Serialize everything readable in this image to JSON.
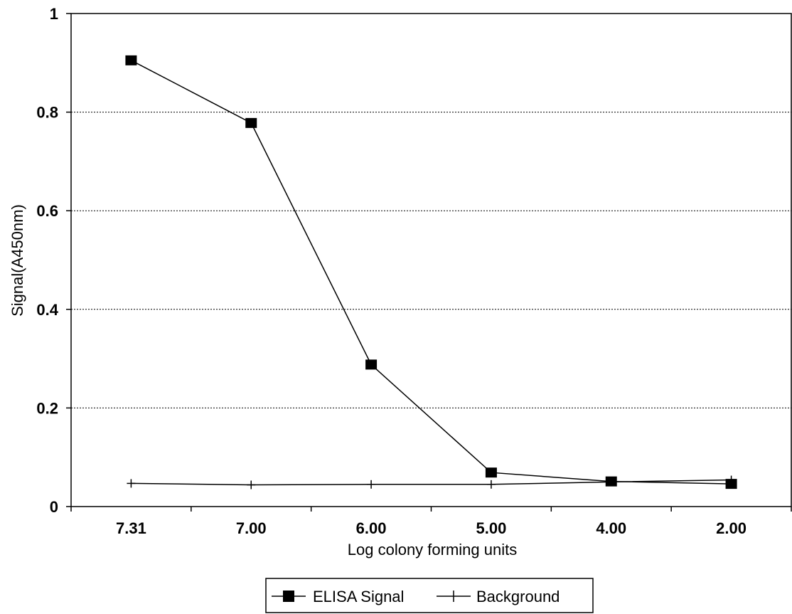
{
  "chart_data": {
    "type": "line",
    "title": "",
    "xlabel": "Log colony forming units",
    "ylabel": "Signal(A450nm)",
    "categories": [
      "7.31",
      "7.00",
      "6.00",
      "5.00",
      "4.00",
      "2.00"
    ],
    "ylim": [
      0,
      1
    ],
    "yticks": [
      "0",
      "0.2",
      "0.4",
      "0.6",
      "0.8",
      "1"
    ],
    "grid": "horizontal dotted",
    "legend_position": "bottom",
    "series": [
      {
        "name": "ELISA Signal",
        "marker": "square",
        "color": "#000000",
        "values": [
          0.905,
          0.778,
          0.288,
          0.069,
          0.051,
          0.046
        ]
      },
      {
        "name": "Background",
        "marker": "plus",
        "color": "#000000",
        "values": [
          0.047,
          0.044,
          0.045,
          0.045,
          0.05,
          0.054
        ]
      }
    ]
  }
}
